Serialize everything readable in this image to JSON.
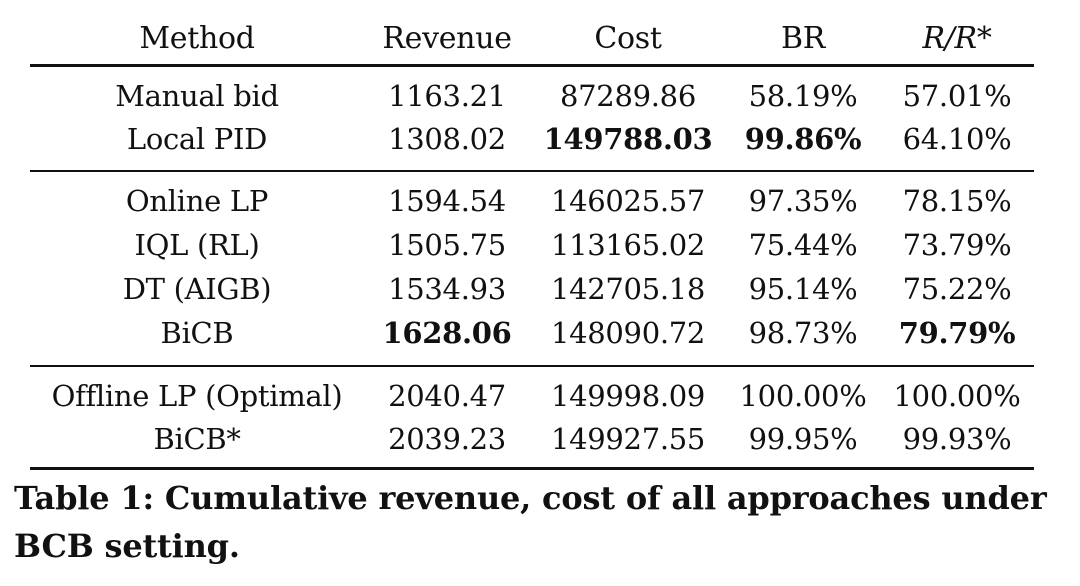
{
  "table": {
    "headers": [
      "Method",
      "Revenue",
      "Cost",
      "BR",
      "R/R*"
    ],
    "groups": [
      {
        "rows": [
          {
            "method": "Manual bid",
            "revenue": "1163.21",
            "cost": "87289.86",
            "br": "58.19%",
            "rr": "57.01%",
            "bold": []
          },
          {
            "method": "Local PID",
            "revenue": "1308.02",
            "cost": "149788.03",
            "br": "99.86%",
            "rr": "64.10%",
            "bold": [
              "cost",
              "br"
            ]
          }
        ]
      },
      {
        "rows": [
          {
            "method": "Online LP",
            "revenue": "1594.54",
            "cost": "146025.57",
            "br": "97.35%",
            "rr": "78.15%",
            "bold": []
          },
          {
            "method": "IQL (RL)",
            "revenue": "1505.75",
            "cost": "113165.02",
            "br": "75.44%",
            "rr": "73.79%",
            "bold": []
          },
          {
            "method": "DT (AIGB)",
            "revenue": "1534.93",
            "cost": "142705.18",
            "br": "95.14%",
            "rr": "75.22%",
            "bold": []
          },
          {
            "method": "BiCB",
            "revenue": "1628.06",
            "cost": "148090.72",
            "br": "98.73%",
            "rr": "79.79%",
            "bold": [
              "revenue",
              "rr"
            ]
          }
        ]
      },
      {
        "rows": [
          {
            "method": "Offline LP (Optimal)",
            "revenue": "2040.47",
            "cost": "149998.09",
            "br": "100.00%",
            "rr": "100.00%",
            "bold": []
          },
          {
            "method": "BiCB*",
            "revenue": "2039.23",
            "cost": "149927.55",
            "br": "99.95%",
            "rr": "99.93%",
            "bold": []
          }
        ]
      }
    ]
  },
  "caption": "Table 1: Cumulative revenue, cost of all approaches under BCB setting."
}
